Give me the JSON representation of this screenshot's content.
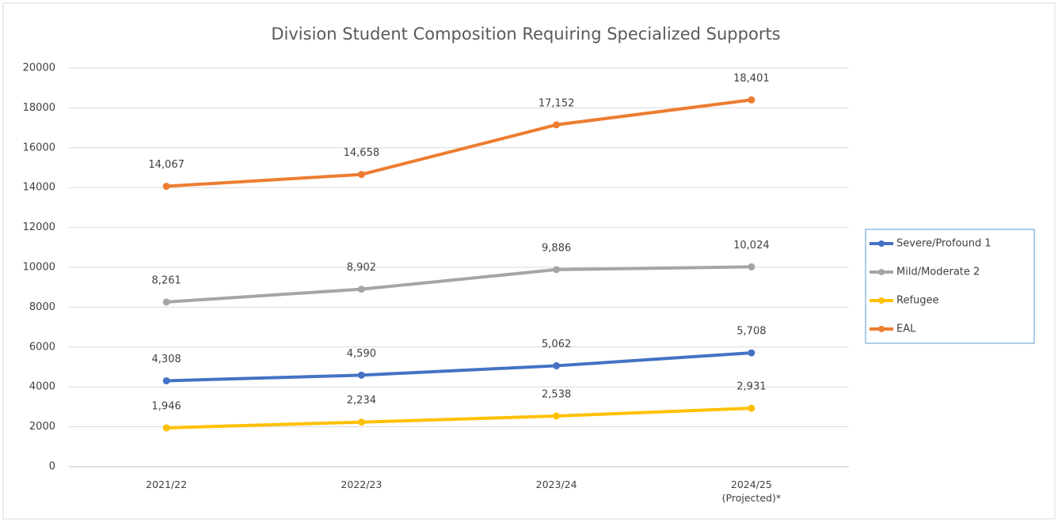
{
  "chart_data": {
    "type": "line",
    "title": "Division Student Composition Requiring Specialized Supports",
    "categories": [
      "2021/22",
      "2022/23",
      "2023/24",
      "2024/25 (Projected)*"
    ],
    "series": [
      {
        "name": "Severe/Profound 1",
        "color": "#4472c4",
        "values": [
          4308,
          4590,
          5062,
          5708
        ],
        "value_labels": [
          "4,308",
          "4,590",
          "5,062",
          "5,708"
        ]
      },
      {
        "name": "Mild/Moderate 2",
        "color": "#a5a5a5",
        "values": [
          8261,
          8902,
          9886,
          10024
        ],
        "value_labels": [
          "8,261",
          "8,902",
          "9,886",
          "10,024"
        ]
      },
      {
        "name": "Refugee",
        "color": "#ffc000",
        "values": [
          1946,
          2234,
          2538,
          2931
        ],
        "value_labels": [
          "1,946",
          "2,234",
          "2,538",
          "2,931"
        ]
      },
      {
        "name": "EAL",
        "color": "#ed7d31",
        "values": [
          14067,
          14658,
          17152,
          18401
        ],
        "value_labels": [
          "14,067",
          "14,658",
          "17,152",
          "18,401"
        ]
      }
    ],
    "ylim": [
      0,
      20000
    ],
    "yticks": [
      0,
      2000,
      4000,
      6000,
      8000,
      10000,
      12000,
      14000,
      16000,
      18000,
      20000
    ],
    "grid": true,
    "legend": "right"
  }
}
